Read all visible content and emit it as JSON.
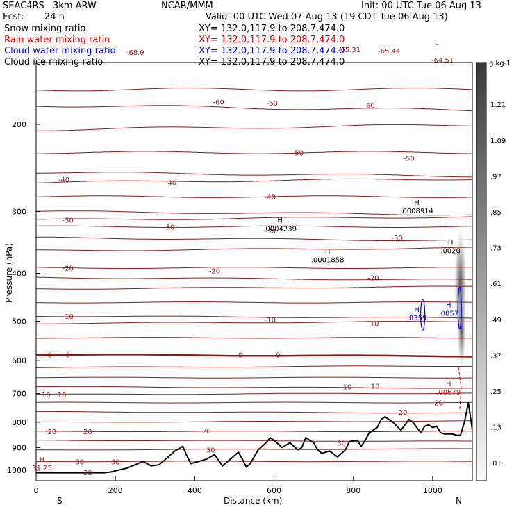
{
  "header": {
    "project": "SEAC4RS",
    "model": "3km ARW",
    "center": "NCAR/MMM",
    "fcst_label": "Fcst:",
    "fcst_value": "24 h",
    "init": "Init: 00 UTC Tue 06 Aug 13",
    "valid": "Valid: 00 UTC Wed 07 Aug 13 (19 CDT Tue 06 Aug 13)"
  },
  "fields": [
    {
      "name": "Snow mixing ratio",
      "xy": "XY= 132.0,117.9 to 208.7,474.0",
      "color": "#000000"
    },
    {
      "name": "Rain water mixing ratio",
      "xy": "XY= 132.0,117.9 to 208.7,474.0",
      "color": "#e00000"
    },
    {
      "name": "Cloud water mixing ratio",
      "xy": "XY= 132.0,117.9 to 208.7,474.0",
      "color": "#0000e0"
    },
    {
      "name": "Cloud ice mixing ratio",
      "xy": "XY= 132.0,117.9 to 208.7,474.0",
      "color": "#000000"
    }
  ],
  "colors": {
    "temperature_contour": "#8b1a1a",
    "terrain": "#000000",
    "cloud_water": "#0000e0",
    "rain_water": "#e00000"
  },
  "chart_data": {
    "type": "cross-section",
    "xlabel": "Distance (km)",
    "ylabel": "Pressure (hPa)",
    "xlim": [
      0,
      1100
    ],
    "ylim": [
      1050,
      150
    ],
    "y_scale": "log",
    "x_ticks": [
      "0",
      "200",
      "400",
      "600",
      "800",
      "1000"
    ],
    "y_ticks": [
      "200",
      "300",
      "400",
      "500",
      "600",
      "700",
      "800",
      "900",
      "1000"
    ],
    "direction_left": "S",
    "direction_right": "N",
    "colorbar": {
      "unit": "g kg-1",
      "labels": [
        "1.21",
        "1.09",
        ".97",
        ".85",
        ".73",
        ".61",
        ".49",
        ".37",
        ".25",
        ".13",
        ".01"
      ],
      "values": [
        1.21,
        1.09,
        0.97,
        0.85,
        0.73,
        0.61,
        0.49,
        0.37,
        0.25,
        0.13,
        0.01
      ]
    },
    "temperature_contour_labels": [
      {
        "text": "-68.9",
        "x": 250,
        "p": 143
      },
      {
        "text": "-65.31",
        "x": 790,
        "p": 141
      },
      {
        "text": "-65.44",
        "x": 890,
        "p": 142
      },
      {
        "text": "-64.51",
        "x": 1025,
        "p": 148
      },
      {
        "text": "-60",
        "x": 460,
        "p": 180
      },
      {
        "text": "-60",
        "x": 595,
        "p": 181
      },
      {
        "text": "-60",
        "x": 840,
        "p": 183
      },
      {
        "text": "-50",
        "x": 660,
        "p": 228
      },
      {
        "text": "-50",
        "x": 940,
        "p": 234
      },
      {
        "text": "-40",
        "x": 70,
        "p": 258
      },
      {
        "text": "-40",
        "x": 340,
        "p": 262
      },
      {
        "text": "-40",
        "x": 590,
        "p": 280
      },
      {
        "text": "-30",
        "x": 80,
        "p": 312
      },
      {
        "text": "-30",
        "x": 335,
        "p": 322
      },
      {
        "text": "-30",
        "x": 590,
        "p": 328
      },
      {
        "text": "-30",
        "x": 910,
        "p": 339
      },
      {
        "text": "-20",
        "x": 80,
        "p": 390
      },
      {
        "text": "-20",
        "x": 450,
        "p": 395
      },
      {
        "text": "-20",
        "x": 850,
        "p": 408
      },
      {
        "text": "-10",
        "x": 80,
        "p": 488
      },
      {
        "text": "-10",
        "x": 590,
        "p": 496
      },
      {
        "text": "-10",
        "x": 850,
        "p": 505
      },
      {
        "text": "0",
        "x": 35,
        "p": 584
      },
      {
        "text": "0",
        "x": 80,
        "p": 584
      },
      {
        "text": "0",
        "x": 515,
        "p": 584
      },
      {
        "text": "0",
        "x": 610,
        "p": 584
      },
      {
        "text": "10",
        "x": 25,
        "p": 703
      },
      {
        "text": "10",
        "x": 65,
        "p": 703
      },
      {
        "text": "10",
        "x": 785,
        "p": 678
      },
      {
        "text": "10",
        "x": 855,
        "p": 675
      },
      {
        "text": "20",
        "x": 40,
        "p": 835
      },
      {
        "text": "20",
        "x": 130,
        "p": 835
      },
      {
        "text": "20",
        "x": 430,
        "p": 832
      },
      {
        "text": "20",
        "x": 925,
        "p": 762
      },
      {
        "text": "20",
        "x": 1015,
        "p": 730
      },
      {
        "text": "30",
        "x": 440,
        "p": 910
      },
      {
        "text": "30",
        "x": 770,
        "p": 880
      },
      {
        "text": "30",
        "x": 110,
        "p": 960
      },
      {
        "text": "30",
        "x": 200,
        "p": 960
      },
      {
        "text": "30",
        "x": 130,
        "p": 1010
      }
    ],
    "extrema_labels": [
      {
        "mark": "H",
        "value": ".0008914",
        "x": 960,
        "p": 295,
        "field": "snow"
      },
      {
        "mark": "H",
        "value": ".0004239",
        "x": 615,
        "p": 320,
        "field": "snow"
      },
      {
        "mark": "H",
        "value": ".0001858",
        "x": 735,
        "p": 370,
        "field": "snow"
      },
      {
        "mark": "H",
        "value": ".0020",
        "x": 1045,
        "p": 355,
        "field": "snow"
      },
      {
        "mark": "H",
        "value": ".0359",
        "x": 960,
        "p": 485,
        "field": "cloud_water"
      },
      {
        "mark": "H",
        "value": ".0857",
        "x": 1040,
        "p": 475,
        "field": "cloud_water"
      },
      {
        "mark": "H",
        "value": ".00679",
        "x": 1040,
        "p": 685,
        "field": "rain_water"
      },
      {
        "mark": "H",
        "value": "31.25",
        "x": 15,
        "p": 975,
        "field": "temperature"
      },
      {
        "mark": "L",
        "value": "",
        "x": 1010,
        "p": 140,
        "field": "temperature"
      }
    ],
    "terrain": {
      "x": [
        0,
        170,
        190,
        200,
        230,
        250,
        270,
        280,
        290,
        310,
        330,
        350,
        370,
        380,
        390,
        410,
        430,
        450,
        460,
        470,
        490,
        510,
        520,
        530,
        540,
        560,
        580,
        590,
        600,
        620,
        640,
        660,
        670,
        680,
        700,
        710,
        720,
        740,
        760,
        780,
        790,
        810,
        820,
        830,
        840,
        860,
        870,
        880,
        900,
        920,
        940,
        950,
        960,
        970,
        980,
        990,
        1000,
        1010,
        1020,
        1030,
        1040,
        1050,
        1060,
        1070,
        1080,
        1090,
        1100
      ],
      "p": [
        1012,
        1012,
        1008,
        1003,
        990,
        975,
        960,
        970,
        980,
        975,
        945,
        915,
        895,
        935,
        970,
        960,
        950,
        930,
        955,
        980,
        950,
        920,
        950,
        985,
        970,
        910,
        880,
        860,
        870,
        900,
        880,
        910,
        900,
        860,
        880,
        910,
        925,
        915,
        940,
        910,
        875,
        870,
        895,
        870,
        840,
        820,
        790,
        780,
        800,
        830,
        790,
        800,
        820,
        840,
        815,
        810,
        820,
        815,
        840,
        845,
        845,
        845,
        850,
        850,
        800,
        730,
        830
      ]
    }
  }
}
